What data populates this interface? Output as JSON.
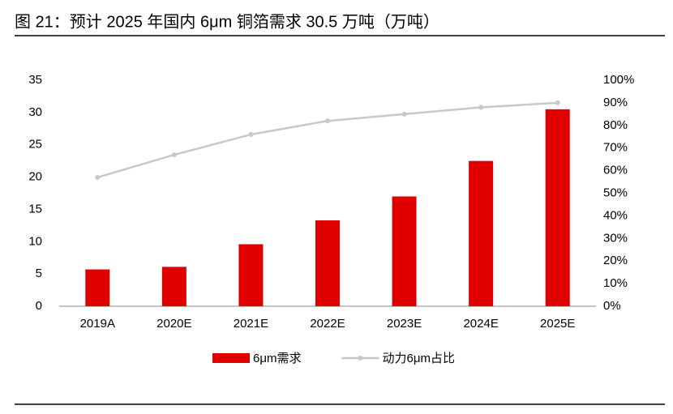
{
  "chart_data": {
    "type": "bar_line",
    "title": "图 21：预计 2025 年国内 6μm 铜箔需求 30.5 万吨（万吨）",
    "categories": [
      "2019A",
      "2020E",
      "2021E",
      "2022E",
      "2023E",
      "2024E",
      "2025E"
    ],
    "series": [
      {
        "name": "6μm需求",
        "type": "bar",
        "color": "#e00000",
        "values": [
          5.7,
          6.1,
          9.6,
          13.3,
          17,
          22.5,
          30.5
        ]
      },
      {
        "name": "动力6μm占比",
        "type": "line",
        "axis": "y2",
        "color": "#c8c8c8",
        "values": [
          57,
          67,
          76,
          82,
          85,
          88,
          90
        ]
      }
    ],
    "ylim": [
      0,
      35
    ],
    "yticks": [
      0,
      5,
      10,
      15,
      20,
      25,
      30,
      35
    ],
    "y2lim": [
      0,
      100
    ],
    "y2ticks": [
      {
        "value": 0,
        "label": "0%"
      },
      {
        "value": 10,
        "label": "10%"
      },
      {
        "value": 20,
        "label": "20%"
      },
      {
        "value": 30,
        "label": "30%"
      },
      {
        "value": 40,
        "label": "40%"
      },
      {
        "value": 50,
        "label": "50%"
      },
      {
        "value": 60,
        "label": "60%"
      },
      {
        "value": 70,
        "label": "70%"
      },
      {
        "value": 80,
        "label": "80%"
      },
      {
        "value": 90,
        "label": "90%"
      },
      {
        "value": 100,
        "label": "100%"
      }
    ],
    "grid": false,
    "legend": "bottom"
  }
}
